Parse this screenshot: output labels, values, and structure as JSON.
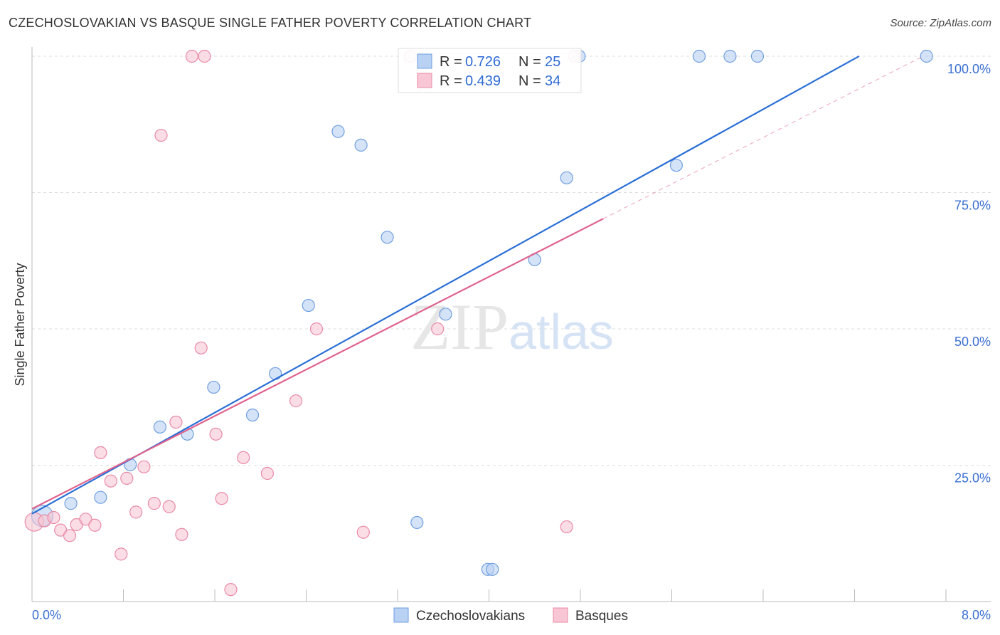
{
  "title": "CZECHOSLOVAKIAN VS BASQUE SINGLE FATHER POVERTY CORRELATION CHART",
  "source": "Source: ZipAtlas.com",
  "watermark": "ZIPatlas",
  "chart_data": {
    "type": "scatter",
    "title": "CZECHOSLOVAKIAN VS BASQUE SINGLE FATHER POVERTY CORRELATION CHART",
    "xlabel": "",
    "ylabel": "Single Father Poverty",
    "xlim": [
      0,
      8
    ],
    "ylim": [
      0,
      100
    ],
    "x_tick_labels": [
      "0.0%",
      "8.0%"
    ],
    "y_ticks": [
      25,
      50,
      75,
      100
    ],
    "y_tick_labels": [
      "25.0%",
      "50.0%",
      "75.0%",
      "100.0%"
    ],
    "grid": true,
    "legend_position": "top-center",
    "series": [
      {
        "name": "Czechoslovakians",
        "color": "#6f9fe0",
        "fill": "#b9d1f3",
        "line_color": "#2a6fd6",
        "R": "0.726",
        "N": "25",
        "trend": {
          "intercept": 16.1,
          "slope": 11.59,
          "x_end": 7.24
        },
        "points": [
          [
            0.09,
            15.7
          ],
          [
            0.34,
            18.0
          ],
          [
            0.6,
            19.1
          ],
          [
            0.86,
            25.1
          ],
          [
            1.12,
            32.0
          ],
          [
            1.36,
            30.7
          ],
          [
            1.59,
            39.3
          ],
          [
            1.93,
            34.2
          ],
          [
            2.13,
            41.8
          ],
          [
            2.42,
            54.3
          ],
          [
            2.68,
            86.2
          ],
          [
            2.88,
            83.7
          ],
          [
            3.11,
            66.8
          ],
          [
            3.37,
            14.5
          ],
          [
            3.62,
            52.7
          ],
          [
            3.99,
            5.9
          ],
          [
            4.03,
            5.9
          ],
          [
            4.4,
            62.7
          ],
          [
            4.68,
            77.7
          ],
          [
            4.79,
            100
          ],
          [
            5.64,
            80.0
          ],
          [
            5.84,
            100
          ],
          [
            6.11,
            100
          ],
          [
            6.35,
            100
          ],
          [
            7.83,
            100
          ]
        ]
      },
      {
        "name": "Basques",
        "color": "#e98aa6",
        "fill": "#f8c6d4",
        "line_color": "#e0648e",
        "R": "0.439",
        "N": "34",
        "trend": {
          "intercept": 17.0,
          "slope": 10.64,
          "x_end": 5.0,
          "dashed_to": 7.8
        },
        "points": [
          [
            0.02,
            14.6
          ],
          [
            0.11,
            14.8
          ],
          [
            0.19,
            15.4
          ],
          [
            0.25,
            13.1
          ],
          [
            0.33,
            12.1
          ],
          [
            0.39,
            14.1
          ],
          [
            0.47,
            15.1
          ],
          [
            0.55,
            14.0
          ],
          [
            0.6,
            27.3
          ],
          [
            0.69,
            22.1
          ],
          [
            0.78,
            8.7
          ],
          [
            0.83,
            22.6
          ],
          [
            0.91,
            16.4
          ],
          [
            0.98,
            24.7
          ],
          [
            1.07,
            18.0
          ],
          [
            1.13,
            85.5
          ],
          [
            1.2,
            17.4
          ],
          [
            1.26,
            32.9
          ],
          [
            1.31,
            12.3
          ],
          [
            1.4,
            100
          ],
          [
            1.48,
            46.5
          ],
          [
            1.51,
            100
          ],
          [
            1.61,
            30.7
          ],
          [
            1.66,
            18.9
          ],
          [
            1.74,
            2.2
          ],
          [
            1.85,
            26.4
          ],
          [
            2.06,
            23.5
          ],
          [
            2.31,
            36.8
          ],
          [
            2.49,
            50.0
          ],
          [
            2.9,
            12.7
          ],
          [
            3.31,
            100
          ],
          [
            3.55,
            50.0
          ],
          [
            4.68,
            13.7
          ],
          [
            4.75,
            100
          ]
        ]
      }
    ]
  },
  "legend": {
    "r_label": "R =",
    "n_label": "N ="
  }
}
